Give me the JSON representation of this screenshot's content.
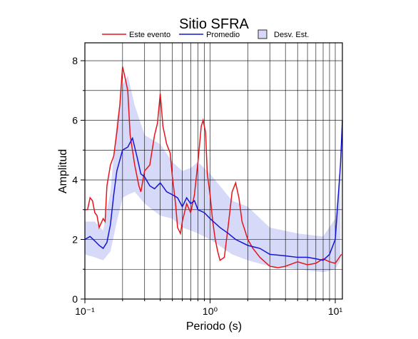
{
  "chart_data": {
    "type": "line",
    "title": "Sitio SFRA",
    "x_label": "Periodo (s)",
    "y_label": "Amplitud",
    "log_x": true,
    "grid": true,
    "xlim": [
      0.1,
      11.4
    ],
    "ylim": [
      0,
      8.6
    ],
    "xticks": [
      {
        "value": 0.1,
        "label": "10⁻¹"
      },
      {
        "value": 1,
        "label": "10⁰"
      },
      {
        "value": 10,
        "label": "10¹"
      }
    ],
    "xgrid": [
      0.2,
      0.3,
      0.4,
      0.5,
      0.6,
      0.7,
      0.8,
      0.9,
      2,
      3,
      4,
      5,
      6,
      7,
      8,
      9
    ],
    "yticks": [
      0,
      2,
      4,
      6,
      8
    ],
    "yminor": [
      1,
      3,
      5,
      7
    ],
    "band": {
      "name": "Desv. Est.",
      "color": "#d6d9f7",
      "x": [
        0.1,
        0.12,
        0.14,
        0.16,
        0.18,
        0.2,
        0.22,
        0.25,
        0.3,
        0.4,
        0.5,
        0.6,
        0.7,
        0.8,
        1.0,
        1.5,
        2,
        3,
        5,
        8,
        10,
        11
      ],
      "lower": [
        1.5,
        1.4,
        1.3,
        1.6,
        2.6,
        3.4,
        3.5,
        3.6,
        3.2,
        2.8,
        2.7,
        2.4,
        2.3,
        2.2,
        2.0,
        1.5,
        1.3,
        1.1,
        1.0,
        0.9,
        1.0,
        1.3
      ],
      "upper": [
        2.6,
        2.6,
        2.3,
        3.6,
        6.0,
        7.2,
        7.5,
        6.5,
        5.5,
        5.2,
        4.6,
        4.3,
        4.4,
        4.6,
        4.2,
        3.3,
        3.1,
        2.4,
        2.2,
        2.1,
        2.7,
        4.5
      ]
    },
    "series": [
      {
        "name": "Este evento",
        "color": "#e8141b",
        "x": [
          0.1,
          0.105,
          0.11,
          0.115,
          0.12,
          0.125,
          0.13,
          0.14,
          0.145,
          0.15,
          0.16,
          0.17,
          0.18,
          0.19,
          0.2,
          0.21,
          0.22,
          0.23,
          0.25,
          0.27,
          0.28,
          0.3,
          0.33,
          0.36,
          0.38,
          0.4,
          0.42,
          0.45,
          0.48,
          0.5,
          0.53,
          0.55,
          0.58,
          0.6,
          0.65,
          0.7,
          0.75,
          0.8,
          0.85,
          0.88,
          0.92,
          0.95,
          1.0,
          1.05,
          1.1,
          1.15,
          1.2,
          1.3,
          1.4,
          1.5,
          1.6,
          1.7,
          1.8,
          1.9,
          2.0,
          2.2,
          2.5,
          3.0,
          3.5,
          4,
          5,
          6,
          7,
          8,
          9,
          10,
          11.2
        ],
        "values": [
          3.0,
          3.0,
          3.4,
          3.3,
          2.9,
          2.8,
          2.4,
          2.7,
          2.6,
          3.8,
          4.5,
          4.8,
          5.6,
          6.5,
          7.8,
          7.4,
          7.0,
          5.5,
          4.5,
          3.8,
          3.6,
          4.3,
          4.5,
          5.5,
          5.9,
          6.9,
          5.8,
          5.2,
          4.9,
          4.1,
          3.2,
          2.4,
          2.2,
          2.6,
          3.2,
          2.9,
          3.5,
          4.6,
          5.8,
          6.0,
          5.6,
          4.2,
          3.5,
          2.6,
          2.0,
          1.6,
          1.3,
          1.4,
          2.5,
          3.6,
          3.9,
          3.4,
          2.6,
          2.3,
          2.0,
          1.7,
          1.4,
          1.1,
          1.05,
          1.1,
          1.25,
          1.15,
          1.2,
          1.35,
          1.25,
          1.2,
          1.5
        ]
      },
      {
        "name": "Promedio",
        "color": "#1515d6",
        "x": [
          0.1,
          0.11,
          0.12,
          0.13,
          0.14,
          0.15,
          0.16,
          0.17,
          0.18,
          0.2,
          0.22,
          0.24,
          0.26,
          0.28,
          0.3,
          0.33,
          0.36,
          0.4,
          0.45,
          0.5,
          0.55,
          0.6,
          0.65,
          0.7,
          0.75,
          0.8,
          0.9,
          1.0,
          1.2,
          1.4,
          1.6,
          2,
          2.5,
          3,
          4,
          5,
          6,
          7,
          8,
          9,
          10,
          11,
          11.4
        ],
        "values": [
          2.0,
          2.1,
          1.95,
          1.8,
          1.7,
          1.9,
          2.5,
          3.5,
          4.3,
          5.0,
          5.1,
          5.4,
          4.8,
          4.2,
          4.1,
          3.8,
          3.7,
          3.9,
          3.6,
          3.5,
          3.4,
          3.1,
          3.4,
          3.2,
          3.3,
          3.0,
          2.9,
          2.7,
          2.4,
          2.2,
          2.0,
          1.8,
          1.7,
          1.5,
          1.45,
          1.4,
          1.4,
          1.35,
          1.3,
          1.5,
          2.0,
          4.5,
          6.0
        ]
      }
    ]
  }
}
